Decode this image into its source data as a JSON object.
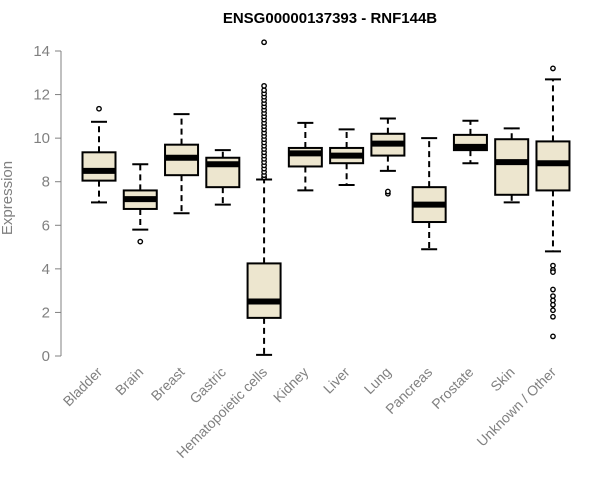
{
  "chart_data": {
    "type": "box",
    "title": "ENSG00000137393 - RNF144B",
    "ylabel": "Expression",
    "xlabel": "",
    "ylim": [
      0,
      14
    ],
    "yticks": [
      0,
      2,
      4,
      6,
      8,
      10,
      12,
      14
    ],
    "grid": false,
    "colors": {
      "box_fill": "#ede6cf",
      "stroke": "#000000",
      "axis": "#808080"
    },
    "categories": [
      "Bladder",
      "Brain",
      "Breast",
      "Gastric",
      "Hematopoietic cells",
      "Kidney",
      "Liver",
      "Lung",
      "Pancreas",
      "Prostate",
      "Skin",
      "Unknown / Other"
    ],
    "boxes": [
      {
        "category": "Bladder",
        "whisker_low": 7.05,
        "q1": 8.05,
        "median": 8.5,
        "q3": 9.35,
        "whisker_high": 10.75,
        "outliers": [
          11.35
        ]
      },
      {
        "category": "Brain",
        "whisker_low": 5.8,
        "q1": 6.75,
        "median": 7.2,
        "q3": 7.6,
        "whisker_high": 8.8,
        "outliers": [
          5.25
        ]
      },
      {
        "category": "Breast",
        "whisker_low": 6.55,
        "q1": 8.3,
        "median": 9.1,
        "q3": 9.7,
        "whisker_high": 11.1,
        "outliers": []
      },
      {
        "category": "Gastric",
        "whisker_low": 6.95,
        "q1": 7.75,
        "median": 8.8,
        "q3": 9.1,
        "whisker_high": 9.45,
        "outliers": []
      },
      {
        "category": "Hematopoietic cells",
        "whisker_low": 0.05,
        "q1": 1.75,
        "median": 2.5,
        "q3": 4.25,
        "whisker_high": 8.1,
        "outliers": [
          8.2,
          8.3,
          8.45,
          8.6,
          8.75,
          8.9,
          9.05,
          9.2,
          9.35,
          9.5,
          9.65,
          9.8,
          9.95,
          10.1,
          10.25,
          10.4,
          10.55,
          10.7,
          10.85,
          11.0,
          11.15,
          11.3,
          11.45,
          11.6,
          11.75,
          11.9,
          12.05,
          12.2,
          12.4,
          14.4
        ]
      },
      {
        "category": "Kidney",
        "whisker_low": 7.6,
        "q1": 8.7,
        "median": 9.3,
        "q3": 9.55,
        "whisker_high": 10.7,
        "outliers": []
      },
      {
        "category": "Liver",
        "whisker_low": 7.85,
        "q1": 8.85,
        "median": 9.2,
        "q3": 9.55,
        "whisker_high": 10.4,
        "outliers": []
      },
      {
        "category": "Lung",
        "whisker_low": 8.5,
        "q1": 9.2,
        "median": 9.75,
        "q3": 10.2,
        "whisker_high": 10.9,
        "outliers": [
          7.45,
          7.55
        ]
      },
      {
        "category": "Pancreas",
        "whisker_low": 4.9,
        "q1": 6.15,
        "median": 6.95,
        "q3": 7.75,
        "whisker_high": 10.0,
        "outliers": []
      },
      {
        "category": "Prostate",
        "whisker_low": 8.85,
        "q1": 9.45,
        "median": 9.6,
        "q3": 10.15,
        "whisker_high": 10.8,
        "outliers": []
      },
      {
        "category": "Skin",
        "whisker_low": 7.05,
        "q1": 7.4,
        "median": 8.9,
        "q3": 9.95,
        "whisker_high": 10.45,
        "outliers": []
      },
      {
        "category": "Unknown / Other",
        "whisker_low": 4.8,
        "q1": 7.6,
        "median": 8.85,
        "q3": 9.85,
        "whisker_high": 12.7,
        "outliers": [
          13.2,
          4.15,
          3.95,
          3.85,
          3.05,
          2.75,
          2.55,
          2.35,
          2.1,
          1.8,
          0.9
        ]
      }
    ]
  }
}
